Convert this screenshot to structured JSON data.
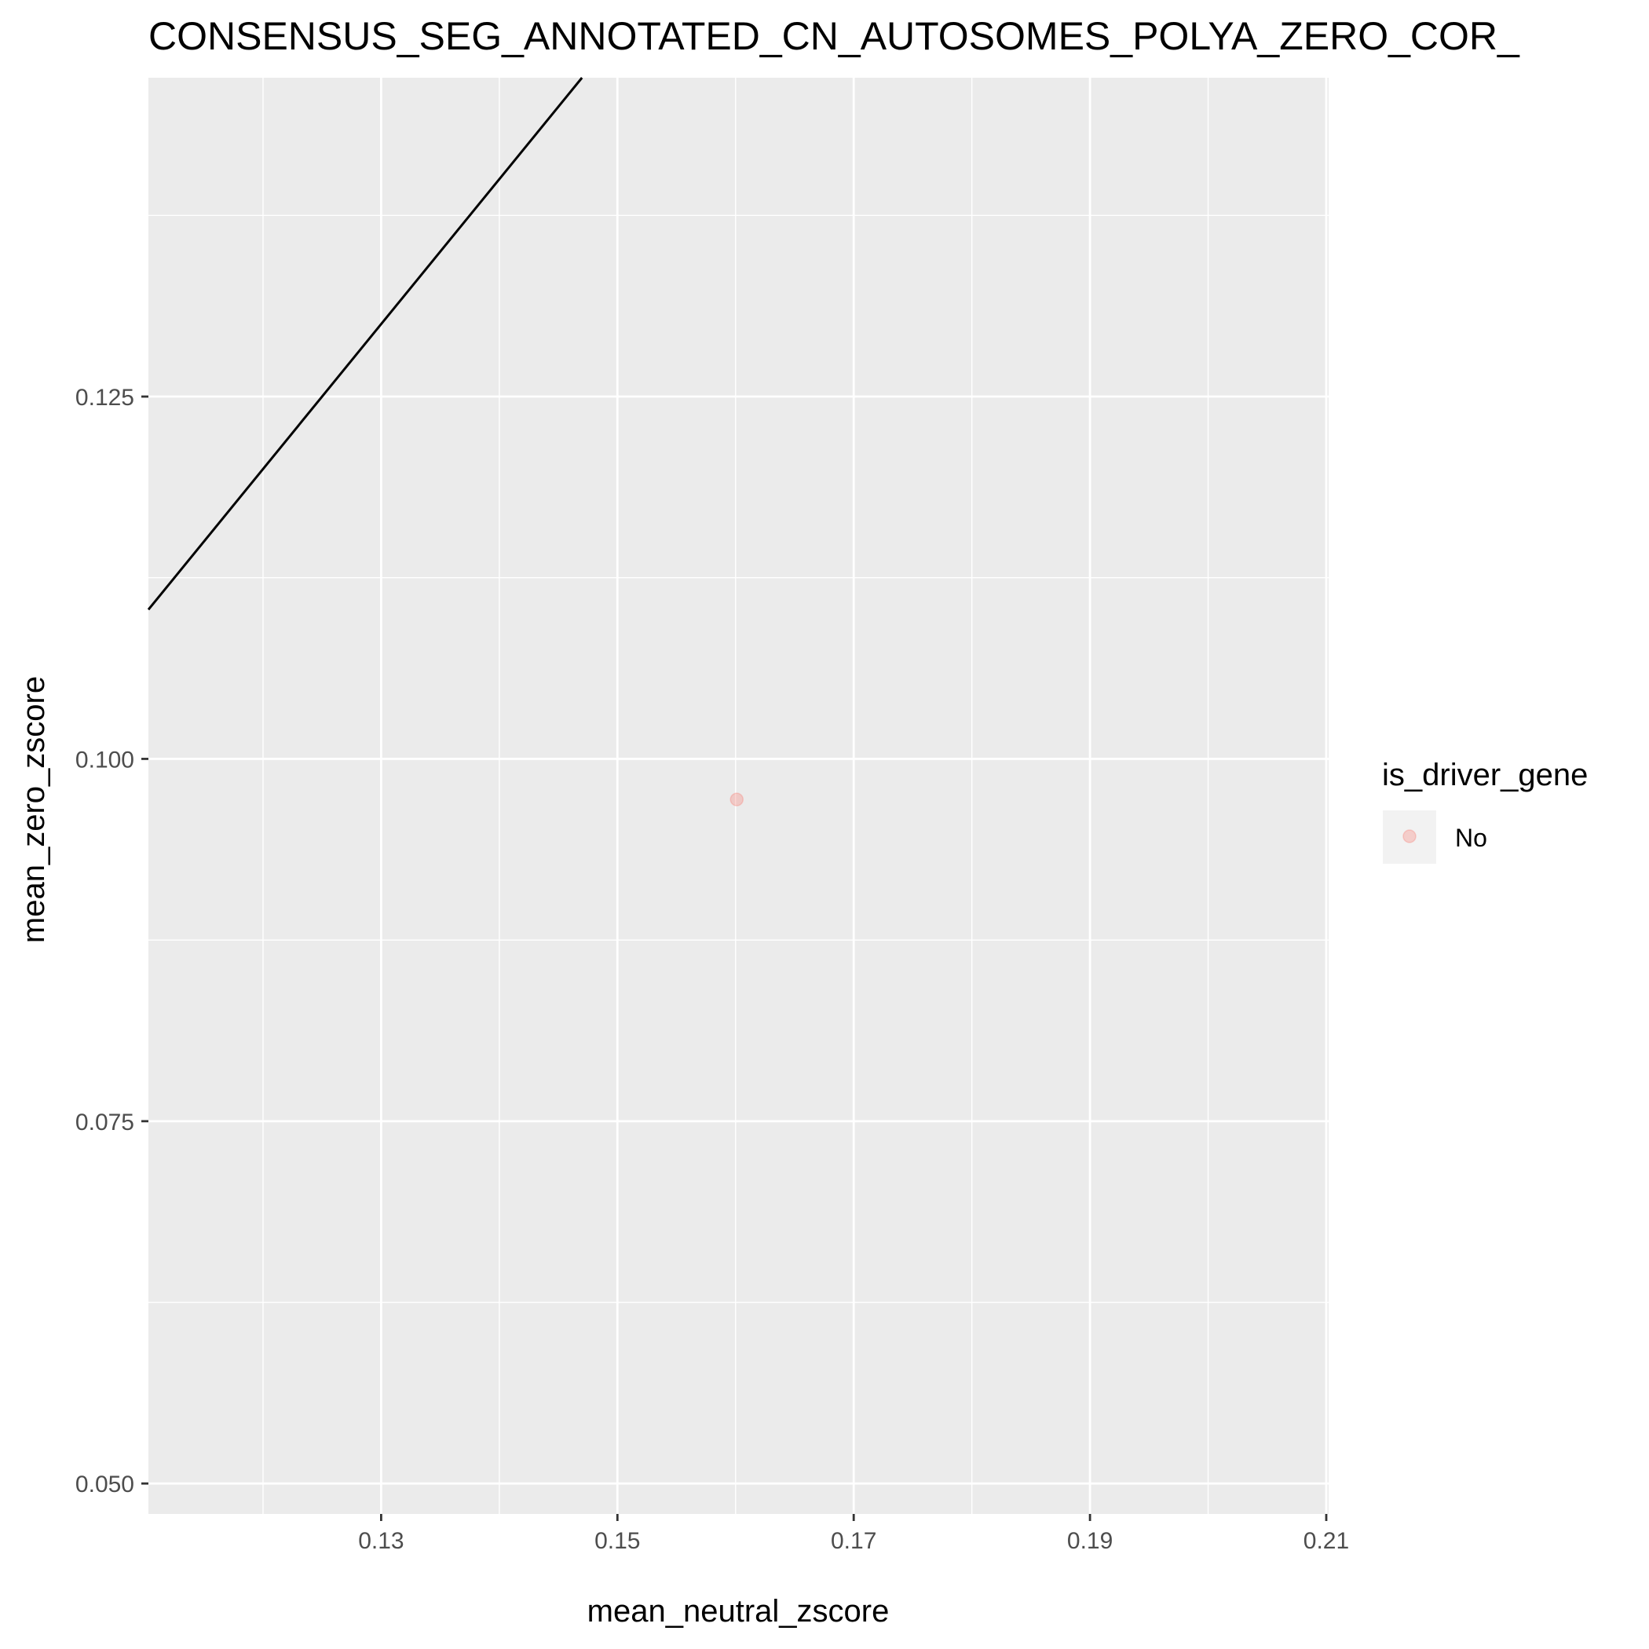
{
  "chart_data": {
    "type": "scatter",
    "title": "CONSENSUS_SEG_ANNOTATED_CN_AUTOSOMES_POLYA_ZERO_COR_",
    "xlabel": "mean_neutral_zscore",
    "ylabel": "mean_zero_zscore",
    "xlim": [
      0.1103,
      0.2102
    ],
    "ylim": [
      0.0479,
      0.147
    ],
    "x_ticks": [
      0.13,
      0.15,
      0.17,
      0.19,
      0.21
    ],
    "x_tick_labels": [
      "0.13",
      "0.15",
      "0.17",
      "0.19",
      "0.21"
    ],
    "y_ticks": [
      0.05,
      0.075,
      0.1,
      0.125
    ],
    "y_tick_labels": [
      "0.050",
      "0.075",
      "0.100",
      "0.125"
    ],
    "grid": true,
    "background": "#ebebeb",
    "series": [
      {
        "name": "No",
        "color": "#f8766d",
        "opacity": 0.3,
        "points": [
          {
            "x": 0.1601,
            "y": 0.0972
          }
        ]
      }
    ],
    "reference_line": {
      "slope": 1,
      "intercept": 0,
      "color": "#000000"
    },
    "legend": {
      "title": "is_driver_gene",
      "position": "right",
      "entries": [
        {
          "label": "No",
          "color": "#f8766d"
        }
      ]
    }
  }
}
